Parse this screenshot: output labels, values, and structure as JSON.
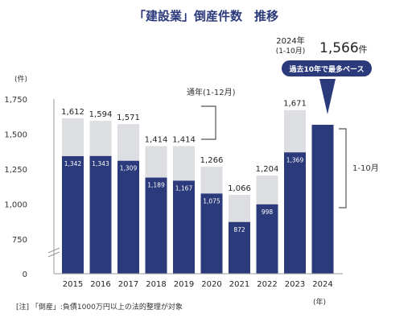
{
  "chart_data": {
    "type": "bar",
    "title": "「建設業」倒産件数　推移",
    "ylabel": "(件)",
    "xlabel": "(年)",
    "ylim": [
      0,
      1750
    ],
    "yticks": [
      0,
      750,
      1000,
      1250,
      1500,
      1750
    ],
    "ytick_labels": [
      "0",
      "750",
      "1,000",
      "1,250",
      "1,500",
      "1,750"
    ],
    "categories": [
      "2015",
      "2016",
      "2017",
      "2018",
      "2019",
      "2020",
      "2021",
      "2022",
      "2023",
      "2024"
    ],
    "series": [
      {
        "name": "通年(1-12月)",
        "values": [
          1612,
          1594,
          1571,
          1414,
          1414,
          1266,
          1066,
          1204,
          1671,
          null
        ],
        "labels": [
          "1,612",
          "1,594",
          "1,571",
          "1,414",
          "1,414",
          "1,266",
          "1,066",
          "1,204",
          "1,671",
          ""
        ],
        "color": "#dcdee2"
      },
      {
        "name": "1-10月",
        "values": [
          1342,
          1343,
          1309,
          1189,
          1167,
          1075,
          872,
          998,
          1369,
          1566
        ],
        "labels": [
          "1,342",
          "1,343",
          "1,309",
          "1,189",
          "1,167",
          "1,075",
          "872",
          "998",
          "1,369",
          ""
        ],
        "color": "#2b3a7a"
      }
    ],
    "grid": false,
    "axis_break": true,
    "annotations": {
      "year_label": "2024年",
      "period_label": "(1-10月)",
      "value_2024": "1,566",
      "value_unit": "件",
      "callout": "過去10年で最多ペース",
      "legend_full_year": "通年(1-12月)",
      "legend_partial": "1-10月"
    },
    "note": "[注] 「倒産」:負債1000万円以上の法的整理が対象"
  }
}
